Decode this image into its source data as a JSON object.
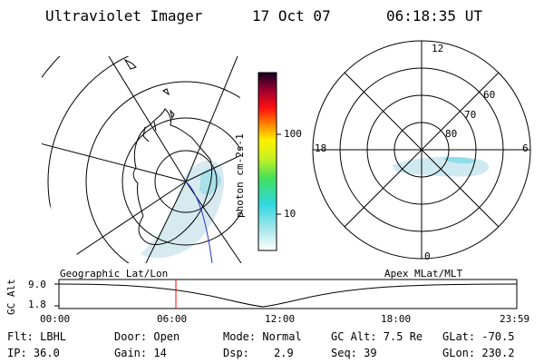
{
  "header": {
    "title": "Ultraviolet Imager",
    "date": "17 Oct 07",
    "time": "06:18:35 UT"
  },
  "colorbar": {
    "label": "photon cm-2s-1",
    "tick_labels": [
      "100",
      "10"
    ]
  },
  "polar_plot": {
    "mlt_labels": [
      "12",
      "18",
      "6",
      "0"
    ],
    "mlat_labels": [
      "60",
      "70",
      "80"
    ]
  },
  "timeline": {
    "left_title": "Geographic Lat/Lon",
    "right_title": "Apex MLat/MLT",
    "ylabel": "GC Alt",
    "y_ticks": [
      "9.0",
      "1.8"
    ],
    "x_ticks": [
      "00:00",
      "06:00",
      "12:00",
      "18:00",
      "23:59"
    ]
  },
  "info": {
    "flt": "Flt: LBHL",
    "ip": "IP: 36.0",
    "door": "Door: Open",
    "gain": "Gain: 14",
    "mode": "Mode: Normal",
    "dsp_label": "Dsp:",
    "dsp_value": "2.9",
    "gcalt": "GC Alt: 7.5 Re",
    "seq": "Seq: 39",
    "glat": "GLat: -70.5",
    "glon": "GLon: 230.2"
  },
  "colors": {
    "aurora": "#c9e6ee",
    "auroraBright": "#7fd4e2",
    "marker": "#ff0000",
    "track": "#2233cc"
  }
}
